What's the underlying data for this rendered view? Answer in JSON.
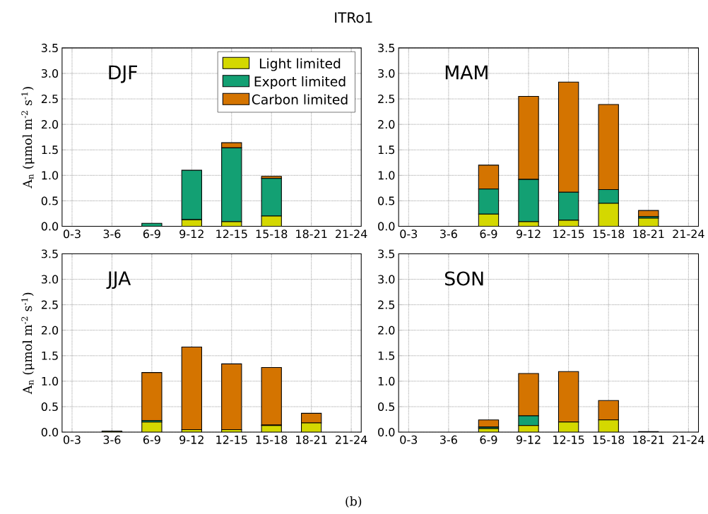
{
  "chart_data": [
    {
      "type": "bar",
      "stacked": true,
      "title": "DJF",
      "ylabel": "A$_{n}$ (μmol m$^{-2}$ s$^{-1}$)",
      "annotations": [
        "ITRo1",
        "(b)"
      ],
      "grid": true,
      "legend": "top right",
      "categories": [
        "0-3",
        "3-6",
        "6-9",
        "9-12",
        "12-15",
        "15-18",
        "18-21",
        "21-24"
      ],
      "ylim": [
        0,
        3.5
      ],
      "yticks": [
        {
          "value": 0,
          "label": "0.0"
        },
        0.5,
        {
          "value": 1,
          "label": "1.0"
        },
        1.5,
        {
          "value": 2,
          "label": "2.0"
        },
        2.5,
        {
          "value": 3,
          "label": "3.0"
        },
        3.5
      ],
      "series": [
        {
          "name": "Light limited",
          "color": "#d4d800",
          "values": [
            0,
            0,
            null,
            0.13,
            0.09,
            0.2,
            0,
            0
          ]
        },
        {
          "name": "Export limited",
          "color": "#13a073",
          "values": [
            0,
            0,
            0.06,
            0.97,
            1.45,
            0.74,
            0,
            0
          ]
        },
        {
          "name": "Carbon limited",
          "color": "#d47400",
          "values": [
            0,
            0,
            0,
            null,
            0.1,
            0.04,
            0,
            0
          ]
        }
      ]
    },
    {
      "type": "bar",
      "stacked": true,
      "title": "MAM",
      "grid": true,
      "categories": [
        "0-3",
        "3-6",
        "6-9",
        "9-12",
        "12-15",
        "15-18",
        "18-21",
        "21-24"
      ],
      "ylim": [
        0,
        3.5
      ],
      "yticks": [
        {
          "value": 0,
          "label": "0.0"
        },
        0.5,
        {
          "value": 1,
          "label": "1.0"
        },
        1.5,
        {
          "value": 2,
          "label": "2.0"
        },
        2.5,
        {
          "value": 3,
          "label": "3.0"
        },
        3.5
      ],
      "series": [
        {
          "color": "#d4d800",
          "values": [
            0,
            null,
            0.24,
            0.09,
            0.12,
            0.45,
            0.16,
            0
          ]
        },
        {
          "color": "#13a073",
          "values": [
            0,
            0,
            0.49,
            0.83,
            0.55,
            0.27,
            0.03,
            0
          ]
        },
        {
          "color": "#d47400",
          "values": [
            0,
            0,
            0.47,
            1.63,
            2.16,
            1.67,
            0.12,
            0
          ]
        }
      ]
    },
    {
      "type": "bar",
      "stacked": true,
      "title": "JJA",
      "ylabel": "A$_{n}$ (μmol m$^{-2}$ s$^{-1}$)",
      "grid": true,
      "categories": [
        "0-3",
        "3-6",
        "6-9",
        "9-12",
        "12-15",
        "15-18",
        "18-21",
        "21-24"
      ],
      "ylim": [
        0,
        3.5
      ],
      "yticks": [
        {
          "value": 0,
          "label": "0.0"
        },
        0.5,
        {
          "value": 1,
          "label": "1.0"
        },
        1.5,
        {
          "value": 2,
          "label": "2.0"
        },
        2.5,
        {
          "value": 3,
          "label": "3.0"
        },
        3.5
      ],
      "series": [
        {
          "color": "#d4d800",
          "values": [
            0,
            0.02,
            0.2,
            0.05,
            0.05,
            0.13,
            0.18,
            0
          ]
        },
        {
          "color": "#13a073",
          "values": [
            0,
            0,
            0.03,
            0,
            0,
            0.01,
            0,
            0
          ]
        },
        {
          "color": "#d47400",
          "values": [
            0,
            0,
            0.94,
            1.62,
            1.29,
            1.13,
            0.19,
            0
          ]
        }
      ]
    },
    {
      "type": "bar",
      "stacked": true,
      "title": "SON",
      "grid": true,
      "categories": [
        "0-3",
        "3-6",
        "6-9",
        "9-12",
        "12-15",
        "15-18",
        "18-21",
        "21-24"
      ],
      "ylim": [
        0,
        3.5
      ],
      "yticks": [
        {
          "value": 0,
          "label": "0.0"
        },
        0.5,
        {
          "value": 1,
          "label": "1.0"
        },
        1.5,
        {
          "value": 2,
          "label": "2.0"
        },
        2.5,
        {
          "value": 3,
          "label": "3.0"
        },
        3.5
      ],
      "series": [
        {
          "color": "#d4d800",
          "values": [
            0,
            0,
            0.07,
            0.13,
            0.2,
            0.24,
            0.01,
            0
          ]
        },
        {
          "color": "#13a073",
          "values": [
            0,
            0,
            0.03,
            0.19,
            null,
            0,
            0,
            0
          ]
        },
        {
          "color": "#d47400",
          "values": [
            0,
            0,
            0.14,
            0.83,
            0.99,
            0.38,
            0,
            0
          ]
        }
      ]
    }
  ]
}
